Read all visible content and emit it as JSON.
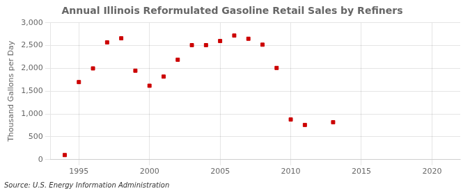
{
  "chart_data": {
    "type": "scatter",
    "title": "Annual Illinois Reformulated Gasoline Retail Sales by Refiners",
    "y_label": "Thousand Gallons per Day",
    "annotation": "Source: U.S. Energy Information Administration",
    "x": [
      1994,
      1995,
      1996,
      1997,
      1998,
      1999,
      2000,
      2001,
      2002,
      2003,
      2004,
      2005,
      2006,
      2007,
      2008,
      2009,
      2010,
      2011,
      2013
    ],
    "values": [
      100,
      1700,
      2000,
      2570,
      2660,
      1950,
      1620,
      1820,
      2190,
      2510,
      2510,
      2600,
      2720,
      2650,
      2520,
      2010,
      880,
      760,
      820
    ],
    "color": "#cc0000",
    "marker": "square",
    "xlim": [
      1993,
      2022
    ],
    "xticks": [
      1995,
      2000,
      2005,
      2010,
      2015,
      2020
    ],
    "ylim": [
      0,
      3000
    ],
    "yticks": [
      0,
      500,
      {
        "value": 1000,
        "label": "1,000"
      },
      {
        "value": 1500,
        "label": "1,500"
      },
      {
        "value": 2000,
        "label": "2,000"
      },
      {
        "value": 2500,
        "label": "2,500"
      },
      {
        "value": 3000,
        "label": "3,000"
      }
    ],
    "grid": true
  }
}
